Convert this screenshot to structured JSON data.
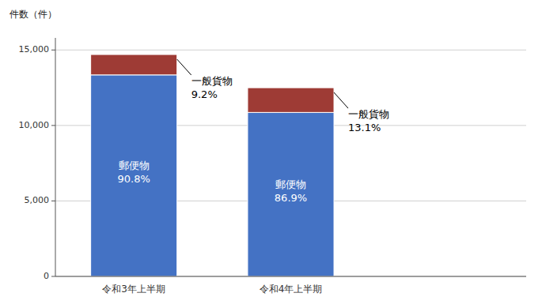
{
  "chart_data": {
    "type": "bar",
    "stacked": true,
    "ylabel": "件数（件）",
    "categories": [
      "令和3年上半期",
      "令和4年上半期"
    ],
    "series": [
      {
        "name": "郵便物",
        "color": "#4472C4",
        "values": [
          13350,
          10863
        ],
        "shares": [
          90.8,
          86.9
        ],
        "share_labels": [
          "90.8%",
          "86.9%"
        ]
      },
      {
        "name": "一般貨物",
        "color": "#9E3B35",
        "values": [
          1350,
          1637
        ],
        "shares": [
          9.2,
          13.1
        ],
        "share_labels": [
          "9.2%",
          "13.1%"
        ]
      }
    ],
    "ylim": [
      0,
      15800
    ],
    "yticks": [
      0,
      {
        "value": 5000,
        "label": "5,000"
      },
      {
        "value": 10000,
        "label": "10,000"
      },
      {
        "value": 15000,
        "label": "15,000"
      }
    ],
    "grid": true
  }
}
